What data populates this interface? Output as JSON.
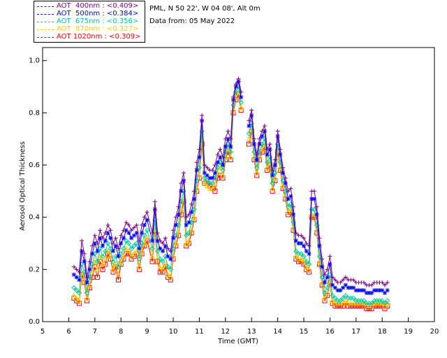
{
  "info": {
    "location": "PML, N 50 22', W 04 08', Alt 0m",
    "date": "Data from: 05 May 2022"
  },
  "chart_data": {
    "type": "line",
    "xlabel": "Time (GMT)",
    "ylabel": "Aerosol Optical Thickness",
    "xlim": [
      5,
      20
    ],
    "ylim": [
      0.0,
      1.05
    ],
    "x_ticks": [
      "5",
      "6",
      "7",
      "8",
      "9",
      "10",
      "11",
      "12",
      "13",
      "14",
      "15",
      "16",
      "17",
      "18",
      "19",
      "20"
    ],
    "y_ticks": [
      "0.0",
      "0.2",
      "0.4",
      "0.6",
      "0.8",
      "1.0"
    ],
    "x": [
      6.2,
      6.3,
      6.4,
      6.5,
      6.6,
      6.7,
      6.8,
      6.9,
      7.0,
      7.1,
      7.2,
      7.3,
      7.4,
      7.5,
      7.6,
      7.7,
      7.8,
      7.9,
      8.0,
      8.1,
      8.2,
      8.3,
      8.4,
      8.5,
      8.6,
      8.7,
      8.8,
      8.9,
      9.0,
      9.2,
      9.3,
      9.4,
      9.5,
      9.6,
      9.7,
      9.8,
      9.9,
      10.0,
      10.1,
      10.2,
      10.3,
      10.4,
      10.5,
      10.6,
      10.7,
      10.8,
      10.9,
      11.0,
      11.1,
      11.2,
      11.3,
      11.4,
      11.5,
      11.6,
      11.7,
      11.8,
      11.9,
      12.0,
      12.1,
      12.2,
      12.3,
      12.4,
      12.5,
      12.6,
      12.9,
      13.0,
      13.1,
      13.2,
      13.3,
      13.4,
      13.5,
      13.6,
      13.7,
      13.8,
      13.9,
      14.0,
      14.1,
      14.2,
      14.3,
      14.4,
      14.5,
      14.6,
      14.7,
      14.8,
      14.9,
      15.0,
      15.1,
      15.2,
      15.3,
      15.4,
      15.5,
      15.6,
      15.7,
      15.8,
      15.9,
      16.0,
      16.1,
      16.2,
      16.3,
      16.4,
      16.5,
      16.6,
      16.7,
      16.8,
      16.9,
      17.0,
      17.1,
      17.2,
      17.3,
      17.4,
      17.5,
      17.6,
      17.7,
      17.8,
      17.9,
      18.0,
      18.1,
      18.2
    ],
    "series": [
      {
        "name": "AOT  400nm : <0.409>",
        "color": "#800080",
        "values": [
          0.21,
          0.2,
          0.19,
          0.31,
          0.26,
          0.17,
          0.23,
          0.29,
          0.33,
          0.3,
          0.35,
          0.32,
          0.34,
          0.37,
          0.35,
          0.3,
          0.32,
          0.28,
          0.33,
          0.35,
          0.38,
          0.37,
          0.35,
          0.36,
          0.37,
          0.31,
          0.37,
          0.4,
          0.42,
          0.34,
          0.46,
          0.34,
          0.31,
          0.3,
          0.32,
          0.28,
          0.27,
          0.35,
          0.4,
          0.44,
          0.53,
          0.57,
          0.4,
          0.41,
          0.45,
          0.5,
          0.61,
          0.66,
          0.79,
          0.6,
          0.59,
          0.58,
          0.58,
          0.6,
          0.64,
          0.66,
          0.63,
          0.7,
          0.73,
          0.7,
          0.86,
          0.91,
          0.93,
          0.88,
          0.77,
          0.81,
          0.7,
          0.64,
          0.7,
          0.73,
          0.75,
          0.66,
          0.68,
          0.58,
          0.62,
          0.73,
          0.66,
          0.59,
          0.55,
          0.5,
          0.51,
          0.44,
          0.34,
          0.33,
          0.33,
          0.32,
          0.3,
          0.29,
          0.5,
          0.5,
          0.44,
          0.32,
          0.24,
          0.18,
          0.2,
          0.25,
          0.17,
          0.16,
          0.15,
          0.15,
          0.16,
          0.17,
          0.16,
          0.16,
          0.16,
          0.15,
          0.15,
          0.15,
          0.15,
          0.14,
          0.14,
          0.14,
          0.15,
          0.15,
          0.15,
          0.15,
          0.14,
          0.15
        ]
      },
      {
        "name": "AOT  500nm : <0.384>",
        "color": "#0000ff",
        "values": [
          0.18,
          0.17,
          0.16,
          0.27,
          0.23,
          0.15,
          0.2,
          0.26,
          0.3,
          0.27,
          0.32,
          0.29,
          0.31,
          0.34,
          0.32,
          0.27,
          0.29,
          0.25,
          0.3,
          0.32,
          0.35,
          0.34,
          0.32,
          0.33,
          0.34,
          0.28,
          0.34,
          0.37,
          0.39,
          0.31,
          0.43,
          0.31,
          0.28,
          0.27,
          0.29,
          0.25,
          0.24,
          0.32,
          0.37,
          0.41,
          0.5,
          0.54,
          0.37,
          0.38,
          0.42,
          0.47,
          0.58,
          0.63,
          0.77,
          0.57,
          0.56,
          0.55,
          0.55,
          0.57,
          0.61,
          0.63,
          0.6,
          0.67,
          0.7,
          0.67,
          0.85,
          0.9,
          0.92,
          0.86,
          0.75,
          0.79,
          0.68,
          0.62,
          0.68,
          0.71,
          0.73,
          0.64,
          0.66,
          0.56,
          0.6,
          0.71,
          0.64,
          0.57,
          0.53,
          0.47,
          0.48,
          0.41,
          0.31,
          0.3,
          0.3,
          0.29,
          0.27,
          0.26,
          0.47,
          0.47,
          0.41,
          0.29,
          0.21,
          0.15,
          0.17,
          0.22,
          0.14,
          0.13,
          0.12,
          0.12,
          0.13,
          0.14,
          0.13,
          0.13,
          0.13,
          0.12,
          0.12,
          0.12,
          0.12,
          0.11,
          0.11,
          0.11,
          0.12,
          0.12,
          0.12,
          0.12,
          0.11,
          0.12
        ]
      },
      {
        "name": "AOT  675nm : <0.356>",
        "color": "#00cc99",
        "values": [
          0.13,
          0.12,
          0.11,
          0.22,
          0.19,
          0.11,
          0.17,
          0.22,
          0.26,
          0.23,
          0.28,
          0.25,
          0.27,
          0.3,
          0.28,
          0.23,
          0.25,
          0.21,
          0.26,
          0.28,
          0.31,
          0.3,
          0.28,
          0.29,
          0.3,
          0.24,
          0.3,
          0.33,
          0.35,
          0.28,
          0.39,
          0.27,
          0.24,
          0.23,
          0.25,
          0.21,
          0.2,
          0.28,
          0.33,
          0.37,
          0.46,
          0.5,
          0.33,
          0.34,
          0.38,
          0.43,
          0.54,
          0.59,
          0.73,
          0.55,
          0.54,
          0.53,
          0.53,
          0.55,
          0.59,
          0.61,
          0.58,
          0.65,
          0.68,
          0.65,
          0.83,
          0.88,
          0.9,
          0.84,
          0.72,
          0.76,
          0.65,
          0.59,
          0.65,
          0.68,
          0.7,
          0.61,
          0.63,
          0.53,
          0.57,
          0.68,
          0.61,
          0.54,
          0.5,
          0.44,
          0.45,
          0.38,
          0.27,
          0.26,
          0.26,
          0.25,
          0.23,
          0.22,
          0.43,
          0.43,
          0.37,
          0.25,
          0.17,
          0.11,
          0.13,
          0.18,
          0.1,
          0.09,
          0.08,
          0.08,
          0.09,
          0.1,
          0.09,
          0.09,
          0.09,
          0.08,
          0.08,
          0.08,
          0.08,
          0.07,
          0.07,
          0.07,
          0.08,
          0.08,
          0.08,
          0.08,
          0.07,
          0.08
        ]
      },
      {
        "name": "AOT  870nm : <0.327>",
        "color": "#ffcc00",
        "values": [
          0.1,
          0.09,
          0.08,
          0.19,
          0.16,
          0.09,
          0.14,
          0.19,
          0.23,
          0.2,
          0.25,
          0.22,
          0.24,
          0.27,
          0.25,
          0.2,
          0.22,
          0.18,
          0.23,
          0.25,
          0.28,
          0.27,
          0.25,
          0.26,
          0.27,
          0.21,
          0.27,
          0.3,
          0.32,
          0.25,
          0.36,
          0.24,
          0.21,
          0.2,
          0.22,
          0.18,
          0.17,
          0.25,
          0.3,
          0.34,
          0.43,
          0.47,
          0.3,
          0.31,
          0.35,
          0.4,
          0.51,
          0.56,
          0.7,
          0.53,
          0.52,
          0.51,
          0.51,
          0.53,
          0.57,
          0.59,
          0.56,
          0.63,
          0.66,
          0.63,
          0.81,
          0.86,
          0.88,
          0.82,
          0.7,
          0.74,
          0.63,
          0.57,
          0.63,
          0.66,
          0.68,
          0.59,
          0.61,
          0.51,
          0.55,
          0.66,
          0.59,
          0.52,
          0.48,
          0.42,
          0.43,
          0.36,
          0.25,
          0.24,
          0.24,
          0.23,
          0.21,
          0.2,
          0.41,
          0.41,
          0.35,
          0.23,
          0.15,
          0.09,
          0.11,
          0.16,
          0.08,
          0.07,
          0.07,
          0.07,
          0.07,
          0.08,
          0.07,
          0.07,
          0.07,
          0.07,
          0.07,
          0.07,
          0.07,
          0.06,
          0.06,
          0.06,
          0.07,
          0.07,
          0.07,
          0.07,
          0.06,
          0.07
        ]
      },
      {
        "name": "AOT 1020nm : <0.309>",
        "color": "#ff0000",
        "values": [
          0.09,
          0.08,
          0.07,
          0.18,
          0.15,
          0.08,
          0.13,
          0.17,
          0.21,
          0.17,
          0.23,
          0.2,
          0.22,
          0.26,
          0.24,
          0.19,
          0.21,
          0.16,
          0.22,
          0.24,
          0.26,
          0.26,
          0.24,
          0.25,
          0.26,
          0.2,
          0.26,
          0.29,
          0.31,
          0.23,
          0.35,
          0.23,
          0.19,
          0.19,
          0.21,
          0.17,
          0.16,
          0.24,
          0.29,
          0.33,
          0.41,
          0.46,
          0.29,
          0.3,
          0.34,
          0.39,
          0.5,
          0.55,
          0.68,
          0.53,
          0.53,
          0.52,
          0.51,
          0.5,
          0.55,
          0.56,
          0.55,
          0.62,
          0.65,
          0.62,
          0.8,
          0.85,
          0.87,
          0.81,
          0.68,
          0.73,
          0.62,
          0.56,
          0.62,
          0.65,
          0.67,
          0.58,
          0.6,
          0.5,
          0.54,
          0.65,
          0.58,
          0.51,
          0.47,
          0.41,
          0.42,
          0.35,
          0.24,
          0.23,
          0.23,
          0.22,
          0.2,
          0.19,
          0.4,
          0.4,
          0.34,
          0.22,
          0.14,
          0.08,
          0.1,
          0.15,
          0.07,
          0.06,
          0.06,
          0.06,
          0.06,
          0.07,
          0.06,
          0.06,
          0.06,
          0.06,
          0.06,
          0.06,
          0.06,
          0.05,
          0.05,
          0.05,
          0.06,
          0.06,
          0.06,
          0.06,
          0.05,
          0.06
        ]
      }
    ],
    "markers": [
      "plus",
      "asterisk",
      "diamond",
      "triangle",
      "square"
    ],
    "grid": false,
    "legend_position": "top-left"
  }
}
